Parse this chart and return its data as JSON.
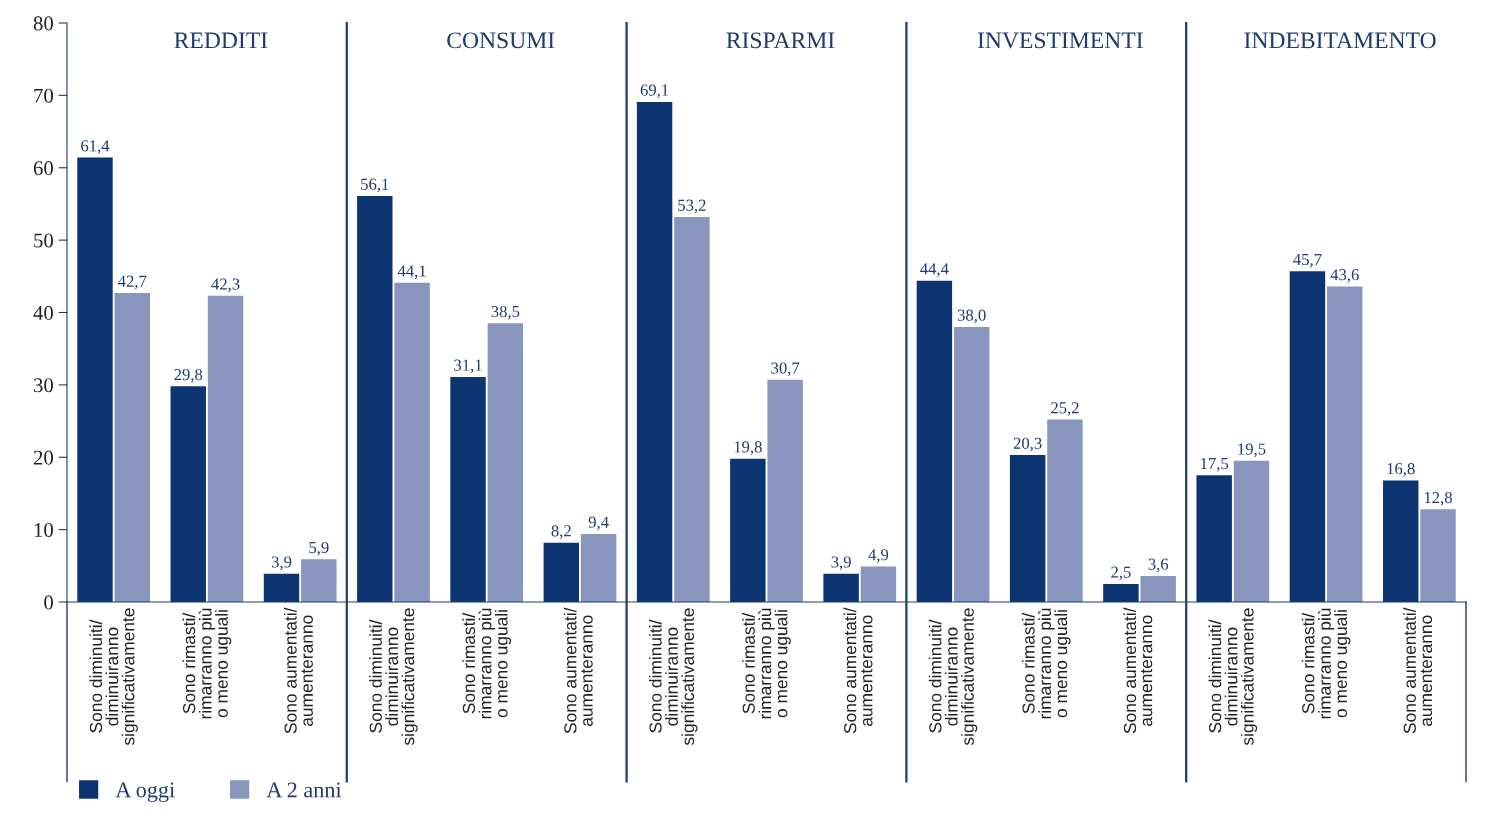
{
  "chart_data": {
    "type": "bar",
    "annotations": [
      "REDDITI",
      "CONSUMI",
      "RISPARMI",
      "INVESTIMENTI",
      "INDEBITAMENTO"
    ],
    "categories": [
      "Sono diminuiti/\ndiminuiranno\nsignificativamente",
      "Sono rimasti/\nrimarranno più\no meno uguali",
      "Sono aumentati/\naumenteranno",
      "Sono diminuiti/\ndiminuiranno\nsignificativamente",
      "Sono rimasti/\nrimarranno più\no meno uguali",
      "Sono aumentati/\naumenteranno",
      "Sono diminuiti/\ndiminuiranno\nsignificativamente",
      "Sono rimasti/\nrimarranno più\no meno uguali",
      "Sono aumentati/\naumenteranno",
      "Sono diminuiti/\ndiminuiranno\nsignificativamente",
      "Sono rimasti/\nrimarranno più\no meno uguali",
      "Sono aumentati/\naumenteranno",
      "Sono diminuiti/\ndiminuiranno\nsignificativamente",
      "Sono rimasti/\nrimarranno più\no meno uguali",
      "Sono aumentati/\naumenteranno"
    ],
    "ylim": [
      0,
      80
    ],
    "yticks": [
      0,
      10,
      20,
      30,
      40,
      50,
      60,
      70,
      80
    ],
    "legend": "bottom left",
    "series": [
      {
        "name": "A oggi",
        "color": "#0c3470",
        "values": [
          61.4,
          29.8,
          3.9,
          56.1,
          31.1,
          8.2,
          69.1,
          19.8,
          3.9,
          44.4,
          20.3,
          2.5,
          17.5,
          45.7,
          16.8
        ],
        "value_labels": [
          "61,4",
          "29,8",
          "3,9",
          "56,1",
          "31,1",
          "8,2",
          "69,1",
          "19,8",
          "3,9",
          "44,4",
          "20,3",
          "2,5",
          "17,5",
          "45,7",
          "16,8"
        ]
      },
      {
        "name": "A 2 anni",
        "color": "#8896be",
        "values": [
          42.7,
          42.3,
          5.9,
          44.1,
          38.5,
          9.4,
          53.2,
          30.7,
          4.9,
          38.0,
          25.2,
          3.6,
          19.5,
          43.6,
          12.8
        ],
        "value_labels": [
          "42,7",
          "42,3",
          "5,9",
          "44,1",
          "38,5",
          "9,4",
          "53,2",
          "30,7",
          "4,9",
          "38,0",
          "25,2",
          "3,6",
          "19,5",
          "43,6",
          "12,8"
        ]
      }
    ]
  }
}
